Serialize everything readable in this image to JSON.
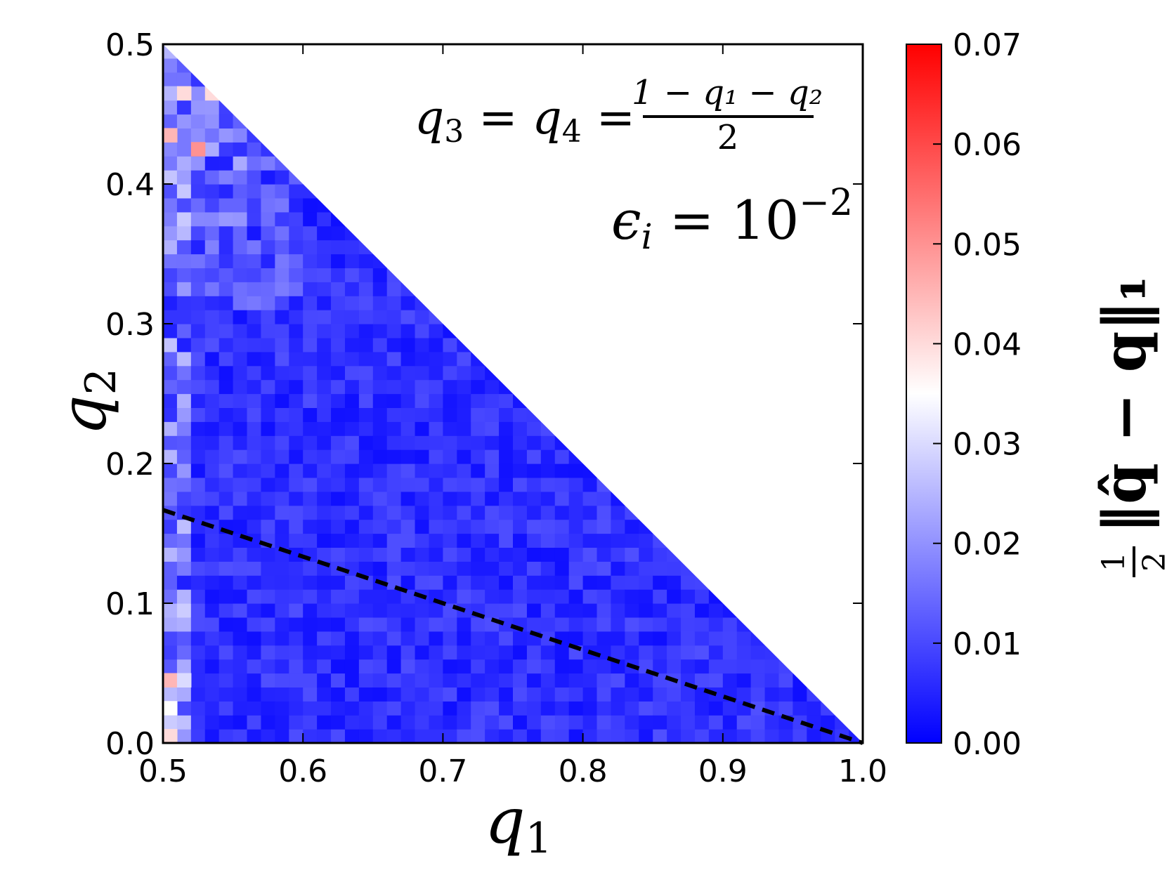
{
  "chart_data": {
    "type": "heatmap",
    "title": "",
    "xlabel": "q",
    "xlabel_sub": "1",
    "ylabel": "q",
    "ylabel_sub": "2",
    "xlim": [
      0.5,
      1.0
    ],
    "ylim": [
      0.0,
      0.5
    ],
    "x_ticks": [
      "0.5",
      "0.6",
      "0.7",
      "0.8",
      "0.9",
      "1.0"
    ],
    "y_ticks": [
      "0.0",
      "0.1",
      "0.2",
      "0.3",
      "0.4",
      "0.5"
    ],
    "colorbar": {
      "label": "½‖q̂ − q‖₁",
      "range": [
        0.0,
        0.07
      ],
      "ticks": [
        "0.00",
        "0.01",
        "0.02",
        "0.03",
        "0.04",
        "0.05",
        "0.06",
        "0.07"
      ],
      "colormap": [
        "#0000ff",
        "#ffffff",
        "#ff0000"
      ],
      "center_value": 0.035
    },
    "grid": false,
    "domain": "q1 + q2 <= 1",
    "annotations": {
      "constraint_lhs": "q",
      "constraint_sub3": "3",
      "constraint_eq": " = ",
      "constraint_sub4": "4",
      "fraction_numerator": "1 − q₁ − q₂",
      "fraction_denominator": "2",
      "epsilon_text": "ϵ",
      "epsilon_sub": "i",
      "epsilon_value": " = 10",
      "epsilon_exp": "−2"
    },
    "dashed_line": {
      "points": [
        [
          0.5,
          0.1667
        ],
        [
          1.0,
          0.0
        ]
      ],
      "color": "#000000"
    },
    "cell_grid": {
      "nx": 50,
      "ny": 50
    },
    "value_regions": [
      {
        "description_free": true,
        "x_range": [
          0.5,
          0.52
        ],
        "y_range": [
          0.0,
          0.5
        ],
        "typical": 0.018,
        "max": 0.045
      },
      {
        "x_range": [
          0.52,
          0.56
        ],
        "y_range": [
          0.35,
          0.5
        ],
        "typical": 0.015,
        "max": 0.04
      },
      {
        "x_range": [
          0.5,
          1.0
        ],
        "y_range": [
          0.0,
          0.5
        ],
        "typical": 0.006,
        "max": 0.015
      }
    ],
    "hotspots": [
      {
        "x": 0.505,
        "y": 0.465,
        "value": 0.025
      },
      {
        "x": 0.515,
        "y": 0.46,
        "value": 0.04
      },
      {
        "x": 0.535,
        "y": 0.46,
        "value": 0.04
      },
      {
        "x": 0.525,
        "y": 0.42,
        "value": 0.05
      },
      {
        "x": 0.505,
        "y": 0.43,
        "value": 0.045
      },
      {
        "x": 0.505,
        "y": 0.04,
        "value": 0.045
      },
      {
        "x": 0.515,
        "y": 0.04,
        "value": 0.03
      },
      {
        "x": 0.505,
        "y": 0.005,
        "value": 0.04
      },
      {
        "x": 0.505,
        "y": 0.025,
        "value": 0.035
      }
    ]
  }
}
